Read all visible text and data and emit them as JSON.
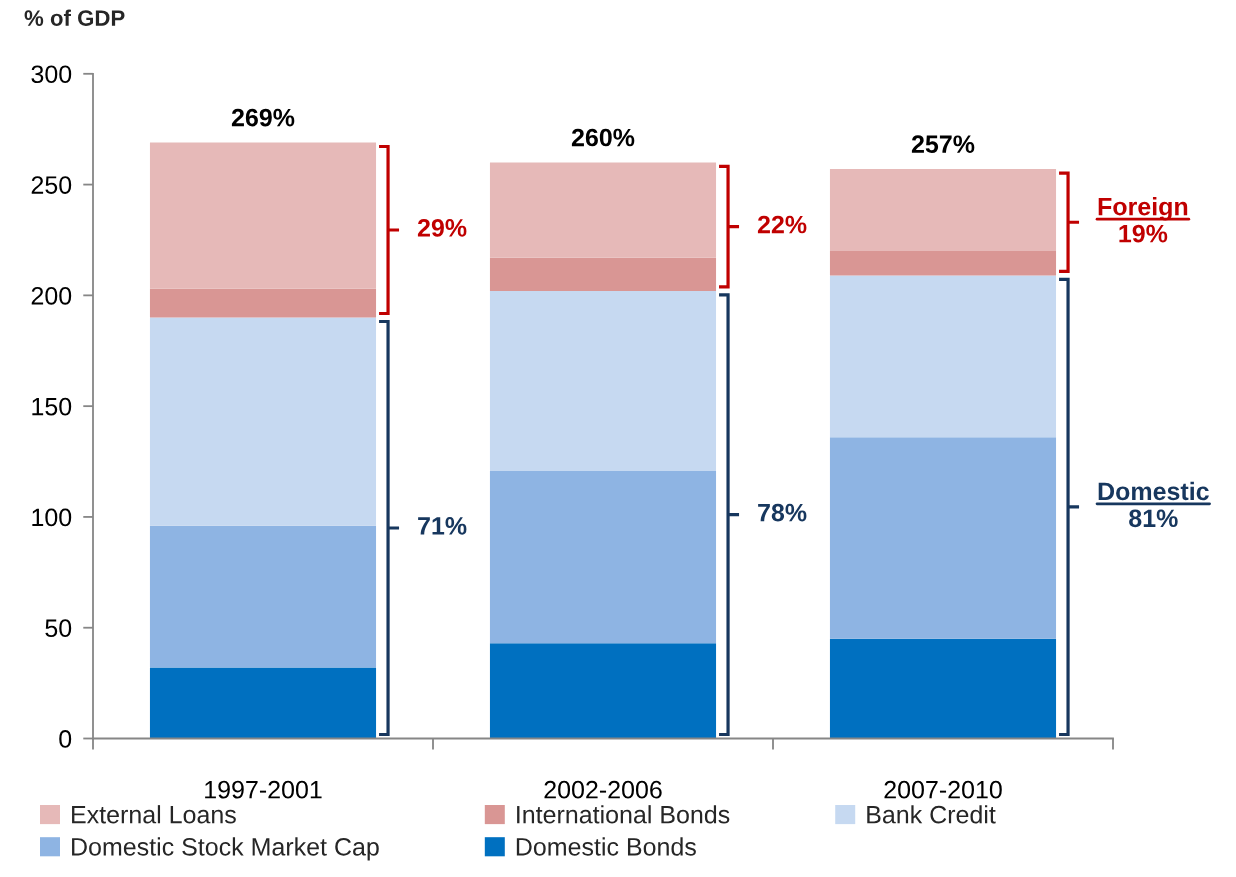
{
  "chart_data": {
    "type": "bar",
    "stacked": true,
    "ylabel": "% of GDP",
    "categories": [
      "1997-2001",
      "2002-2006",
      "2007-2010"
    ],
    "series": [
      {
        "name": "Domestic Bonds",
        "color": "#0070c0",
        "values": [
          32,
          43,
          45
        ]
      },
      {
        "name": "Domestic Stock Market Cap",
        "color": "#8eb4e3",
        "values": [
          64,
          78,
          91
        ]
      },
      {
        "name": "Bank Credit",
        "color": "#c6d9f1",
        "values": [
          94,
          81,
          73
        ]
      },
      {
        "name": "International Bonds",
        "color": "#d99694",
        "values": [
          13,
          15,
          11
        ]
      },
      {
        "name": "External Loans",
        "color": "#e6b9b8",
        "values": [
          66,
          43,
          37
        ]
      }
    ],
    "ylim": [
      0,
      300
    ],
    "yticks": [
      0,
      50,
      100,
      150,
      200,
      250,
      300
    ],
    "totals": [
      "269%",
      "260%",
      "257%"
    ],
    "annotations": [
      "29%",
      "71%",
      "22%",
      "78%",
      "Foreign\n19%",
      "Domestic\n81%"
    ],
    "legend": "bottom",
    "grid": false
  }
}
